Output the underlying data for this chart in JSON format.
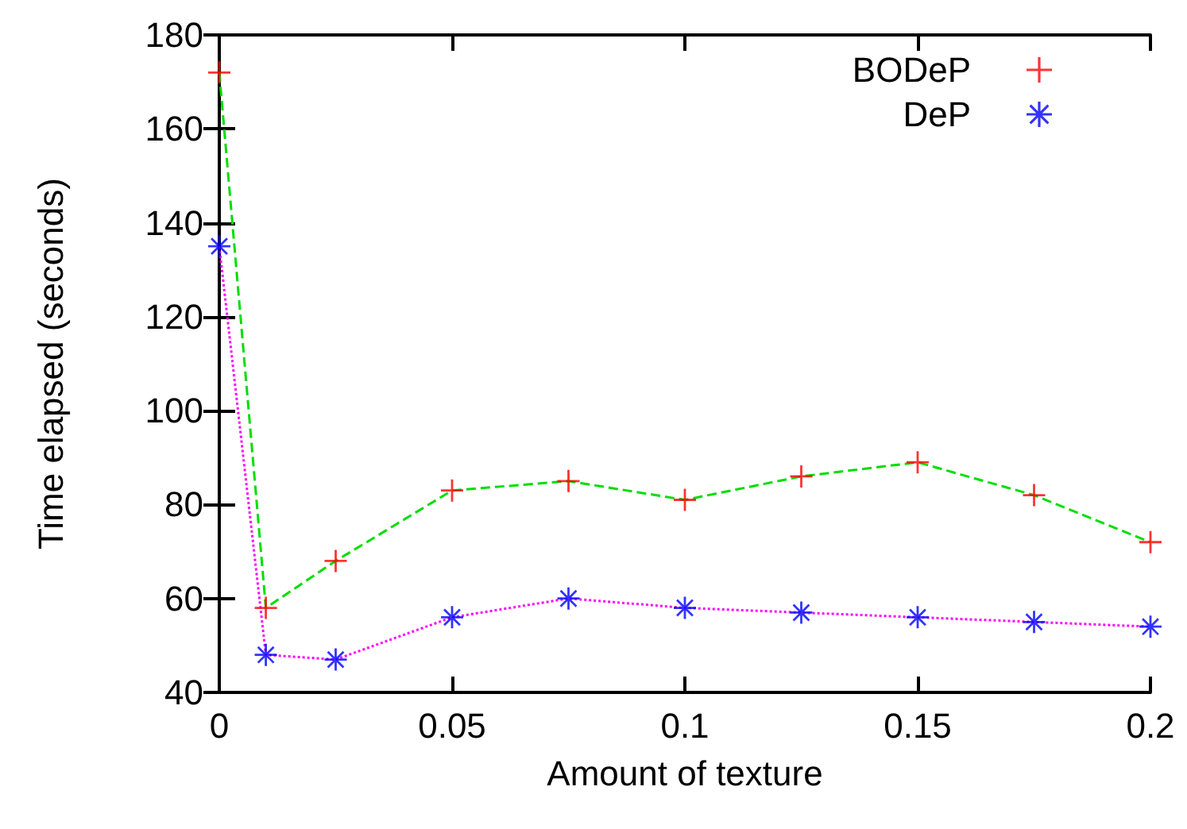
{
  "chart_data": {
    "type": "line",
    "xlabel": "Amount of texture",
    "ylabel": "Time elapsed (seconds)",
    "x": [
      0,
      0.01,
      0.025,
      0.05,
      0.075,
      0.1,
      0.125,
      0.15,
      0.175,
      0.2
    ],
    "xlim": [
      0,
      0.2
    ],
    "xticks": [
      0,
      0.05,
      0.1,
      0.15,
      0.2
    ],
    "ylim": [
      40,
      180
    ],
    "yticks": [
      40,
      60,
      80,
      100,
      120,
      140,
      160,
      180
    ],
    "legend": "top right",
    "series": [
      {
        "type": "line",
        "color": "#00dd00",
        "line_style": "dashed",
        "marker": "none",
        "values": [
          172,
          58,
          68,
          83,
          85,
          81,
          86,
          89,
          82,
          72
        ]
      },
      {
        "type": "line",
        "color": "#ff00ff",
        "line_style": "dotted",
        "marker": "none",
        "values": [
          135,
          48,
          47,
          56,
          60,
          58,
          57,
          56,
          55,
          54
        ]
      },
      {
        "type": "scatter",
        "name": "BODeP",
        "color": "#ff0000",
        "marker": "cross",
        "values": [
          172,
          58,
          68,
          83,
          85,
          81,
          86,
          89,
          82,
          72
        ]
      },
      {
        "type": "scatter",
        "name": "DeP",
        "color": "#0000ff",
        "marker": "star",
        "values": [
          135,
          48,
          47,
          56,
          60,
          58,
          57,
          56,
          55,
          54
        ]
      }
    ]
  }
}
